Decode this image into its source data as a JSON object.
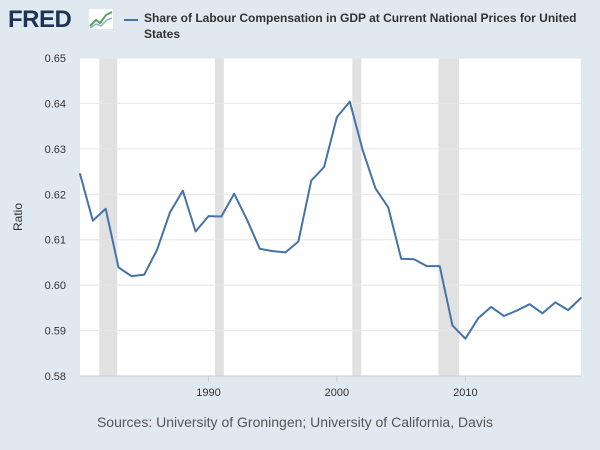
{
  "header": {
    "logo_text": "FRED",
    "legend_title": "Share of Labour Compensation in GDP at Current National Prices for United States"
  },
  "footer": {
    "sources": "Sources: University of Groningen; University of California, Davis"
  },
  "chart_data": {
    "type": "line",
    "title": "Share of Labour Compensation in GDP at Current National Prices for United States",
    "ylabel": "Ratio",
    "xlabel": "",
    "xlim": [
      1980,
      2019
    ],
    "ylim": [
      0.58,
      0.65
    ],
    "yticks": [
      0.58,
      0.59,
      0.6,
      0.61,
      0.62,
      0.63,
      0.64,
      0.65
    ],
    "ytick_labels": [
      "0.58",
      "0.59",
      "0.60",
      "0.61",
      "0.62",
      "0.63",
      "0.64",
      "0.65"
    ],
    "xticks": [
      1990,
      2000,
      2010
    ],
    "xtick_labels": [
      "1990",
      "2000",
      "2010"
    ],
    "grid": true,
    "recessions": [
      [
        1981.5,
        1982.9
      ],
      [
        1990.5,
        1991.2
      ],
      [
        2001.2,
        2001.9
      ],
      [
        2007.9,
        2009.5
      ]
    ],
    "series": [
      {
        "name": "Share of Labour Compensation in GDP at Current National Prices for United States",
        "color": "#4572a7",
        "x": [
          1980,
          1981,
          1982,
          1983,
          1984,
          1985,
          1986,
          1987,
          1988,
          1989,
          1990,
          1991,
          1992,
          1993,
          1994,
          1995,
          1996,
          1997,
          1998,
          1999,
          2000,
          2001,
          2002,
          2003,
          2004,
          2005,
          2006,
          2007,
          2008,
          2009,
          2010,
          2011,
          2012,
          2013,
          2014,
          2015,
          2016,
          2017,
          2018,
          2019
        ],
        "values": [
          0.6245,
          0.6142,
          0.6168,
          0.6039,
          0.602,
          0.6023,
          0.6078,
          0.616,
          0.6208,
          0.6118,
          0.6152,
          0.6151,
          0.6201,
          0.6144,
          0.608,
          0.6075,
          0.6072,
          0.6096,
          0.623,
          0.626,
          0.637,
          0.6404,
          0.6298,
          0.6213,
          0.6171,
          0.6058,
          0.6057,
          0.6042,
          0.6042,
          0.5911,
          0.5882,
          0.5927,
          0.5952,
          0.5932,
          0.5944,
          0.5958,
          0.5938,
          0.5962,
          0.5945,
          0.5972
        ]
      }
    ]
  }
}
